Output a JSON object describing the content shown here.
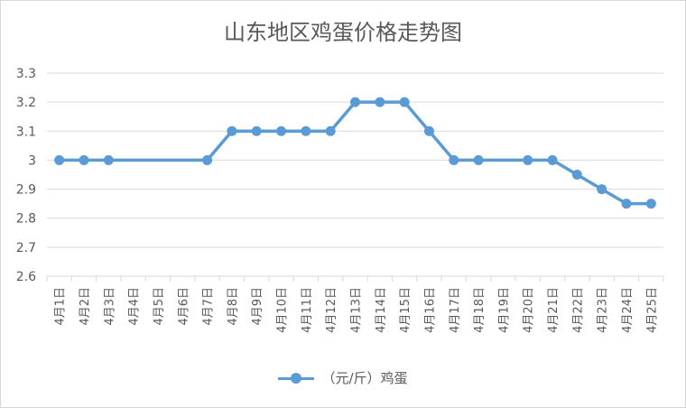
{
  "chart_data": {
    "type": "line",
    "title": "山东地区鸡蛋价格走势图",
    "categories": [
      "4月1日",
      "4月2日",
      "4月3日",
      "4月4日",
      "4月5日",
      "4月6日",
      "4月7日",
      "4月8日",
      "4月9日",
      "4月10日",
      "4月11日",
      "4月12日",
      "4月13日",
      "4月14日",
      "4月15日",
      "4月16日",
      "4月17日",
      "4月18日",
      "4月19日",
      "4月20日",
      "4月21日",
      "4月22日",
      "4月23日",
      "4月24日",
      "4月25日"
    ],
    "series": [
      {
        "name": "（元/斤）鸡蛋",
        "values": [
          3,
          3,
          3,
          null,
          null,
          null,
          3,
          3.1,
          3.1,
          3.1,
          3.1,
          3.1,
          3.2,
          3.2,
          3.2,
          3.1,
          3,
          3,
          null,
          3,
          3,
          2.95,
          2.9,
          2.85,
          2.85
        ]
      }
    ],
    "ylim": [
      2.6,
      3.3
    ],
    "yticks": [
      2.6,
      2.7,
      2.8,
      2.9,
      3,
      3.1,
      3.2,
      3.3
    ],
    "ytick_labels": [
      "2.6",
      "2.7",
      "2.8",
      "2.9",
      "3",
      "3.1",
      "3.2",
      "3.3"
    ],
    "grid": true,
    "legend_position": "bottom",
    "color": "#5b9bd5"
  }
}
